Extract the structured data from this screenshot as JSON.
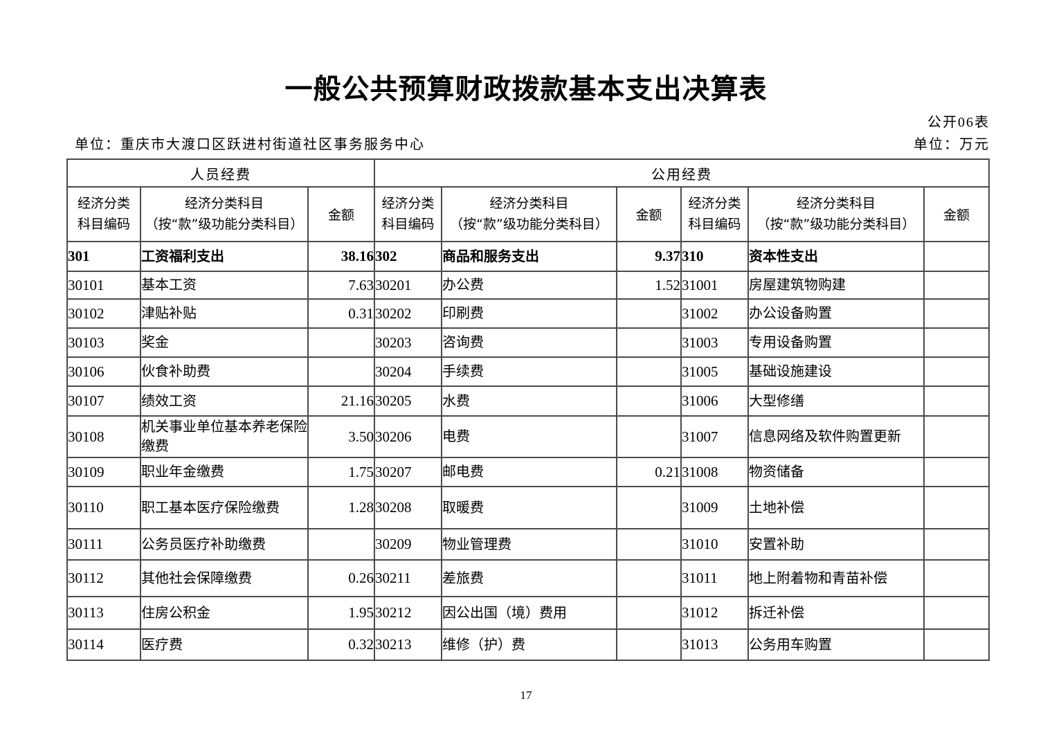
{
  "page": {
    "title": "一般公共预算财政拨款基本支出决算表",
    "form_label": "公开06表",
    "unit_name": "单位：重庆市大渡口区跃进村街道社区事务服务中心",
    "unit_measure": "单位：万元",
    "page_number": "17"
  },
  "table": {
    "section_headers": {
      "personnel": "人员经费",
      "public": "公用经费"
    },
    "column_headers": {
      "code_line1": "经济分类",
      "code_line2": "科目编码",
      "name_line1": "经济分类科目",
      "name_line2": "（按“款”级功能分类科目）",
      "amount": "金额"
    },
    "rows": [
      {
        "bold": true,
        "cells": [
          "301",
          "工资福利支出",
          "38.16",
          "302",
          "商品和服务支出",
          "9.37",
          "310",
          "资本性支出",
          ""
        ]
      },
      {
        "bold": false,
        "cells": [
          "30101",
          "基本工资",
          "7.63",
          "30201",
          "办公费",
          "1.52",
          "31001",
          "房屋建筑物购建",
          ""
        ]
      },
      {
        "bold": false,
        "cells": [
          "30102",
          "津贴补贴",
          "0.31",
          "30202",
          "印刷费",
          "",
          "31002",
          "办公设备购置",
          ""
        ]
      },
      {
        "bold": false,
        "cells": [
          "30103",
          "奖金",
          "",
          "30203",
          "咨询费",
          "",
          "31003",
          "专用设备购置",
          ""
        ]
      },
      {
        "bold": false,
        "cells": [
          "30106",
          "伙食补助费",
          "",
          "30204",
          "手续费",
          "",
          "31005",
          "基础设施建设",
          ""
        ]
      },
      {
        "bold": false,
        "cells": [
          "30107",
          "绩效工资",
          "21.16",
          "30205",
          "水费",
          "",
          "31006",
          "大型修缮",
          ""
        ]
      },
      {
        "bold": false,
        "cells": [
          "30108",
          "机关事业单位基本养老保险缴费",
          "3.50",
          "30206",
          "电费",
          "",
          "31007",
          "信息网络及软件购置更新",
          ""
        ]
      },
      {
        "bold": false,
        "cells": [
          "30109",
          "职业年金缴费",
          "1.75",
          "30207",
          "邮电费",
          "0.21",
          "31008",
          "物资储备",
          ""
        ]
      },
      {
        "bold": false,
        "cells": [
          "30110",
          "职工基本医疗保险缴费",
          "1.28",
          "30208",
          "取暖费",
          "",
          "31009",
          "土地补偿",
          ""
        ]
      },
      {
        "bold": false,
        "cells": [
          "30111",
          "公务员医疗补助缴费",
          "",
          "30209",
          "物业管理费",
          "",
          "31010",
          "安置补助",
          ""
        ]
      },
      {
        "bold": false,
        "cells": [
          "30112",
          "其他社会保障缴费",
          "0.26",
          "30211",
          "差旅费",
          "",
          "31011",
          "地上附着物和青苗补偿",
          ""
        ]
      },
      {
        "bold": false,
        "cells": [
          "30113",
          "住房公积金",
          "1.95",
          "30212",
          "因公出国（境）费用",
          "",
          "31012",
          "拆迁补偿",
          ""
        ]
      },
      {
        "bold": false,
        "cells": [
          "30114",
          "医疗费",
          "0.32",
          "30213",
          "维修（护）费",
          "",
          "31013",
          "公务用车购置",
          ""
        ]
      }
    ]
  }
}
